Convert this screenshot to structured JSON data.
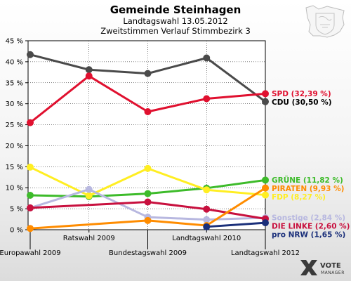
{
  "chart_data": {
    "type": "line",
    "title": "Gemeinde Steinhagen",
    "subtitle": [
      "Landtagswahl 13.05.2012",
      "Zweitstimmen Verlauf Stimmbezirk 3"
    ],
    "categories": [
      "Europawahl 2009",
      "Ratswahl 2009",
      "Bundestagswahl 2009",
      "Landtagswahl 2010",
      "Landtagswahl 2012"
    ],
    "x_label_rows": [
      "low",
      "high",
      "low",
      "high",
      "low"
    ],
    "ylim": [
      0,
      45
    ],
    "yticks": [
      0,
      5,
      10,
      15,
      20,
      25,
      30,
      35,
      40,
      45
    ],
    "ytick_labels": [
      "0 %",
      "5 %",
      "10 %",
      "15 %",
      "20 %",
      "25 %",
      "30 %",
      "35 %",
      "40 %",
      "45 %"
    ],
    "grid": true,
    "series": [
      {
        "name": "CDU",
        "color": "#4a4a4a",
        "values": [
          41.7,
          38.1,
          37.2,
          40.9,
          30.5
        ],
        "label": "CDU (30,50 %)",
        "label_color": "#000000"
      },
      {
        "name": "SPD",
        "color": "#e0102f",
        "values": [
          25.5,
          36.6,
          28.1,
          31.2,
          32.39
        ],
        "label": "SPD (32,39 %)",
        "label_color": "#e0102f"
      },
      {
        "name": "GRÜNE",
        "color": "#3dbb2a",
        "values": [
          8.2,
          7.9,
          8.6,
          9.9,
          11.82
        ],
        "label": "GRÜNE (11,82 %)",
        "label_color": "#3dbb2a"
      },
      {
        "name": "PIRATEN",
        "color": "#ff8c00",
        "values": [
          null,
          null,
          null,
          null,
          9.93
        ],
        "label": "PIRATEN (9,93 %)",
        "label_color": "#ff8c00"
      },
      {
        "name": "FDP",
        "color": "#ffee22",
        "values": [
          14.9,
          8.1,
          14.6,
          9.5,
          8.27
        ],
        "label": "FDP (8,27 %)",
        "label_color": "#ffee22"
      },
      {
        "name": "Sonstige",
        "color": "#b8b8e0",
        "values": [
          5.2,
          9.6,
          3.0,
          2.4,
          2.84
        ],
        "label": "Sonstige (2,84 %)",
        "label_color": "#b8b8e0"
      },
      {
        "name": "DIE LINKE",
        "color": "#c8103e",
        "values": [
          5.2,
          null,
          6.6,
          4.9,
          2.6
        ],
        "label": "DIE LINKE (2,60 %)",
        "label_color": "#c8103e"
      },
      {
        "name": "Orange",
        "color": "#ff8c00",
        "values": [
          0.3,
          null,
          2.2,
          1.0,
          9.93
        ],
        "label": "",
        "label_color": "#ff8c00"
      },
      {
        "name": "pro NRW",
        "color": "#1a2f7a",
        "values": [
          null,
          null,
          null,
          0.7,
          1.65
        ],
        "label": "pro NRW (1,65 %)",
        "label_color": "#1a2f7a"
      }
    ]
  },
  "logo": {
    "name": "VOTE",
    "sub": "MANAGER",
    "icon": "vote-x-logo-icon"
  },
  "crest": {
    "icon": "coat-of-arms-icon"
  }
}
